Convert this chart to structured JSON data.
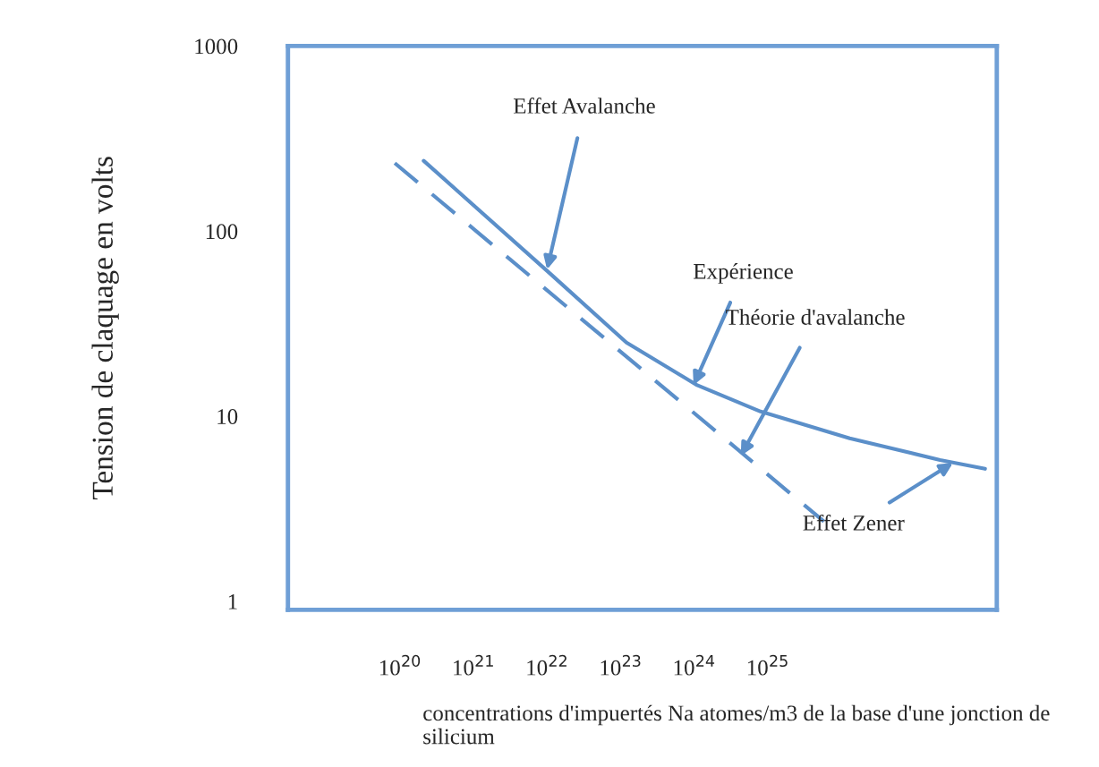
{
  "chart_data": {
    "type": "line",
    "xlabel": "concentrations d'impuertés Na atomes/m3 de la base d'une jonction de silicium",
    "ylabel": "Tension de claquage en volts",
    "log": "xy",
    "grid": false,
    "marker": "none",
    "xlim": [
      3e+18,
      1.3e+28
    ],
    "ylim": [
      0.9,
      1000
    ],
    "xticks": [
      {
        "value": 1e+20,
        "label": "10$^{20}$"
      },
      {
        "value": 1e+21,
        "label": "10$^{21}$"
      },
      {
        "value": 1e+22,
        "label": "10$^{22}$"
      },
      {
        "value": 1e+23,
        "label": "10$^{23}$"
      },
      {
        "value": 1e+24,
        "label": "10$^{24}$"
      },
      {
        "value": 1e+25,
        "label": "10$^{25}$"
      }
    ],
    "yticks": [
      1,
      10,
      100,
      1000
    ],
    "series": [
      {
        "color": "#5b8fc9",
        "line_style": "solid",
        "x": [
          2.1e+20,
          1e+22,
          1.2e+23,
          1.1e+24,
          8e+24,
          1.3e+26,
          2.2e+27,
          9e+27
        ],
        "values": [
          240,
          61,
          25,
          14.7,
          10.6,
          7.6,
          5.8,
          5.2
        ]
      },
      {
        "color": "#5b8fc9",
        "line_style": "dashed",
        "x": [
          8.5e+19,
          5.8e+25
        ],
        "values": [
          233,
          2.7
        ]
      }
    ],
    "annotations": [
      {
        "text": "Effet Avalanche",
        "x": 1e+22,
        "y": 62
      },
      {
        "text": "Expérience",
        "x": 9.8e+23,
        "y": 14.7
      },
      {
        "text": "Théorie d'avalanche",
        "x": 4.3e+24,
        "y": 6.1
      },
      {
        "text": "Effet Zener",
        "x": 3.3e+27,
        "y": 5.6
      }
    ]
  }
}
